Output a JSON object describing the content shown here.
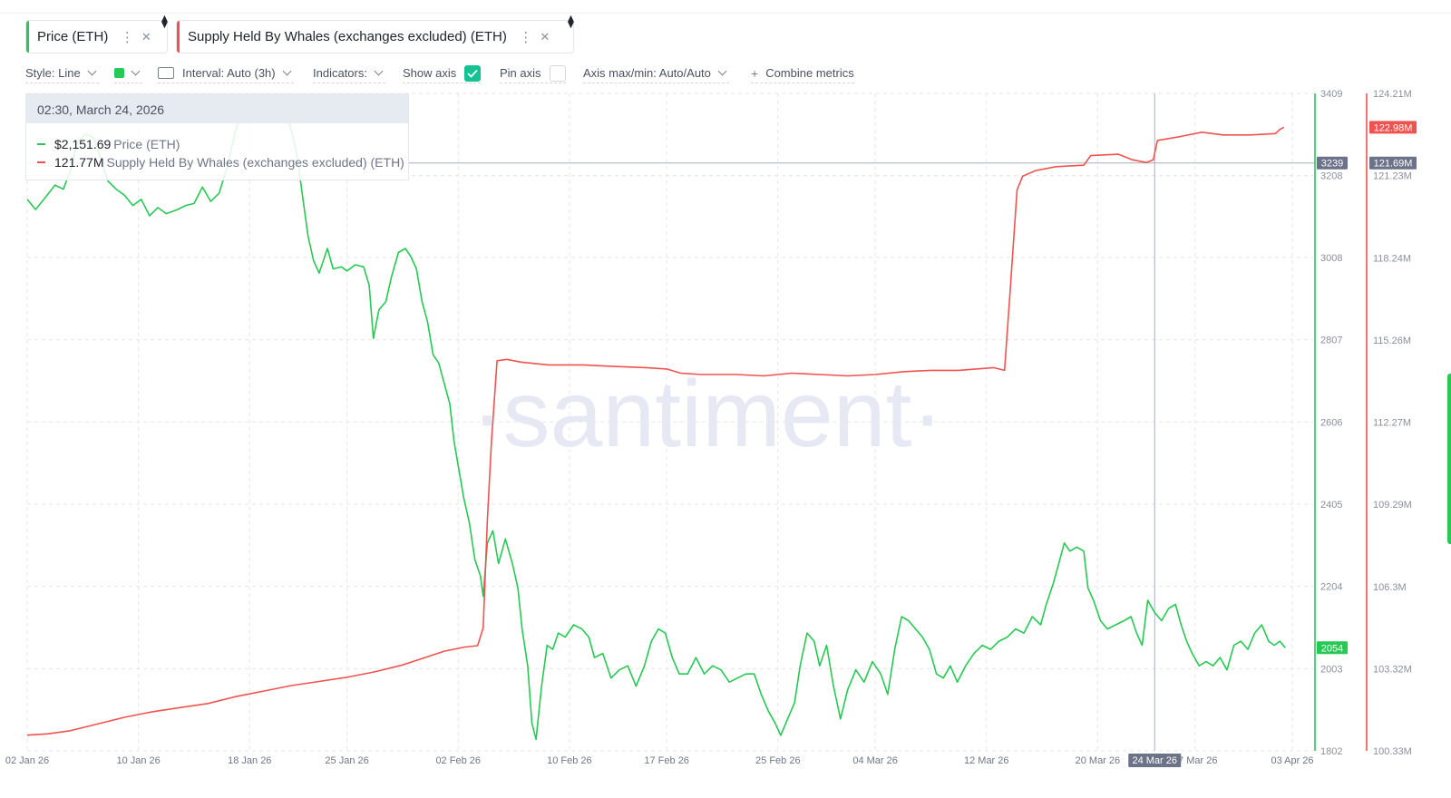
{
  "metrics": [
    {
      "label": "Price (ETH)",
      "color": "#26c953"
    },
    {
      "label": "Supply Held By Whales (exchanges excluded) (ETH)",
      "color": "#ef5350"
    }
  ],
  "icons": {
    "menu": "kebab-icon",
    "close": "close-icon",
    "eth": "eth-icon"
  },
  "toolbar": {
    "style": "Style: Line",
    "interval": "Interval: Auto (3h)",
    "indicators": "Indicators:",
    "show_axis": "Show axis",
    "pin_axis": "Pin axis",
    "axis_maxmin": "Axis max/min: Auto/Auto",
    "combine": "Combine metrics"
  },
  "tooltip": {
    "date": "02:30, March 24, 2026",
    "price_value": "$2,151.69",
    "price_name": "Price (ETH)",
    "whales_value": "121.77M",
    "whales_name": "Supply Held By Whales (exchanges excluded) (ETH)"
  },
  "watermark": "·santiment·",
  "chart_data": {
    "type": "line",
    "x_ticks": [
      "02 Jan 26",
      "10 Jan 26",
      "18 Jan 26",
      "25 Jan 26",
      "02 Feb 26",
      "10 Feb 26",
      "17 Feb 26",
      "25 Feb 26",
      "04 Mar 26",
      "12 Mar 26",
      "20 Mar 26",
      "24 Mar 26",
      "27 Mar 26",
      "03 Apr 26"
    ],
    "x_tick_days": [
      0,
      8,
      16,
      23,
      31,
      39,
      46,
      54,
      61,
      69,
      77,
      81,
      84,
      91
    ],
    "highlight_x": "24 Mar 26",
    "highlight_day": 81.1,
    "x_range_days": [
      0,
      92.5
    ],
    "left_axis": {
      "ticks": [
        3409,
        3208,
        3008,
        2807,
        2606,
        2405,
        2204,
        2003,
        1802
      ],
      "range": [
        1802,
        3409
      ],
      "current": 2054,
      "crosshair": 3239,
      "color": "#26c953"
    },
    "right_axis": {
      "ticks": [
        "124.21M",
        "121.23M",
        "118.24M",
        "115.26M",
        "112.27M",
        "109.29M",
        "106.3M",
        "103.32M",
        "100.33M"
      ],
      "range": [
        100.33,
        124.21
      ],
      "current": "122.98M",
      "crosshair": "121.69M",
      "color": "#ef5350"
    },
    "series": [
      {
        "name": "Price (ETH)",
        "axis": "left",
        "color": "#26c953",
        "points": [
          [
            0,
            3150
          ],
          [
            0.6,
            3125
          ],
          [
            1.2,
            3150
          ],
          [
            2.0,
            3185
          ],
          [
            2.6,
            3175
          ],
          [
            3.2,
            3230
          ],
          [
            3.6,
            3290
          ],
          [
            4.2,
            3310
          ],
          [
            4.8,
            3300
          ],
          [
            5.3,
            3250
          ],
          [
            5.8,
            3195
          ],
          [
            6.4,
            3175
          ],
          [
            7.0,
            3160
          ],
          [
            7.6,
            3135
          ],
          [
            8.2,
            3150
          ],
          [
            8.8,
            3110
          ],
          [
            9.4,
            3130
          ],
          [
            10.0,
            3115
          ],
          [
            10.8,
            3125
          ],
          [
            11.4,
            3135
          ],
          [
            12.0,
            3140
          ],
          [
            12.6,
            3180
          ],
          [
            13.2,
            3145
          ],
          [
            13.8,
            3165
          ],
          [
            14.4,
            3230
          ],
          [
            15.0,
            3320
          ],
          [
            15.6,
            3370
          ],
          [
            16.2,
            3340
          ],
          [
            16.8,
            3360
          ],
          [
            17.4,
            3350
          ],
          [
            18.0,
            3365
          ],
          [
            18.6,
            3360
          ],
          [
            19.0,
            3320
          ],
          [
            19.4,
            3260
          ],
          [
            19.8,
            3160
          ],
          [
            20.2,
            3060
          ],
          [
            20.6,
            3000
          ],
          [
            21.0,
            2970
          ],
          [
            21.6,
            3030
          ],
          [
            22.0,
            2980
          ],
          [
            22.6,
            2985
          ],
          [
            23.0,
            2975
          ],
          [
            23.6,
            2990
          ],
          [
            24.2,
            2985
          ],
          [
            24.6,
            2940
          ],
          [
            24.9,
            2810
          ],
          [
            25.3,
            2880
          ],
          [
            25.8,
            2900
          ],
          [
            26.2,
            2960
          ],
          [
            26.7,
            3020
          ],
          [
            27.2,
            3030
          ],
          [
            27.6,
            3010
          ],
          [
            28.0,
            2980
          ],
          [
            28.4,
            2900
          ],
          [
            28.8,
            2850
          ],
          [
            29.2,
            2770
          ],
          [
            29.6,
            2750
          ],
          [
            30.0,
            2700
          ],
          [
            30.4,
            2650
          ],
          [
            30.7,
            2560
          ],
          [
            31.0,
            2500
          ],
          [
            31.4,
            2420
          ],
          [
            31.8,
            2360
          ],
          [
            32.2,
            2270
          ],
          [
            32.6,
            2230
          ],
          [
            32.8,
            2180
          ],
          [
            33.1,
            2310
          ],
          [
            33.5,
            2340
          ],
          [
            33.9,
            2260
          ],
          [
            34.4,
            2320
          ],
          [
            34.9,
            2260
          ],
          [
            35.3,
            2200
          ],
          [
            35.6,
            2100
          ],
          [
            36.0,
            2010
          ],
          [
            36.3,
            1870
          ],
          [
            36.6,
            1830
          ],
          [
            37.0,
            1960
          ],
          [
            37.4,
            2060
          ],
          [
            37.8,
            2050
          ],
          [
            38.2,
            2090
          ],
          [
            38.7,
            2080
          ],
          [
            39.3,
            2110
          ],
          [
            39.9,
            2100
          ],
          [
            40.4,
            2080
          ],
          [
            40.8,
            2030
          ],
          [
            41.4,
            2040
          ],
          [
            42.0,
            1980
          ],
          [
            42.6,
            2000
          ],
          [
            43.2,
            2010
          ],
          [
            43.8,
            1960
          ],
          [
            44.4,
            2010
          ],
          [
            44.9,
            2070
          ],
          [
            45.4,
            2100
          ],
          [
            45.9,
            2090
          ],
          [
            46.4,
            2030
          ],
          [
            46.9,
            1990
          ],
          [
            47.5,
            1990
          ],
          [
            48.1,
            2030
          ],
          [
            48.7,
            1990
          ],
          [
            49.3,
            2010
          ],
          [
            49.9,
            2000
          ],
          [
            50.5,
            1970
          ],
          [
            51.1,
            1980
          ],
          [
            51.7,
            1990
          ],
          [
            52.3,
            1990
          ],
          [
            52.8,
            1940
          ],
          [
            53.3,
            1900
          ],
          [
            53.8,
            1870
          ],
          [
            54.2,
            1840
          ],
          [
            54.7,
            1880
          ],
          [
            55.2,
            1920
          ],
          [
            55.6,
            2010
          ],
          [
            56.1,
            2090
          ],
          [
            56.6,
            2070
          ],
          [
            57.0,
            2010
          ],
          [
            57.5,
            2060
          ],
          [
            58.0,
            1960
          ],
          [
            58.5,
            1880
          ],
          [
            59.0,
            1950
          ],
          [
            59.6,
            2000
          ],
          [
            60.2,
            1970
          ],
          [
            60.8,
            2020
          ],
          [
            61.4,
            1990
          ],
          [
            61.9,
            1940
          ],
          [
            62.4,
            2050
          ],
          [
            62.9,
            2130
          ],
          [
            63.4,
            2120
          ],
          [
            63.9,
            2100
          ],
          [
            64.4,
            2080
          ],
          [
            64.9,
            2050
          ],
          [
            65.4,
            1990
          ],
          [
            65.9,
            1980
          ],
          [
            66.4,
            2010
          ],
          [
            66.9,
            1970
          ],
          [
            67.5,
            2010
          ],
          [
            68.1,
            2040
          ],
          [
            68.7,
            2060
          ],
          [
            69.3,
            2050
          ],
          [
            69.9,
            2070
          ],
          [
            70.5,
            2080
          ],
          [
            71.1,
            2100
          ],
          [
            71.7,
            2090
          ],
          [
            72.3,
            2130
          ],
          [
            72.9,
            2110
          ],
          [
            73.3,
            2160
          ],
          [
            73.8,
            2210
          ],
          [
            74.2,
            2260
          ],
          [
            74.6,
            2310
          ],
          [
            75.0,
            2290
          ],
          [
            75.5,
            2300
          ],
          [
            76.0,
            2290
          ],
          [
            76.3,
            2200
          ],
          [
            76.7,
            2170
          ],
          [
            77.2,
            2120
          ],
          [
            77.7,
            2100
          ],
          [
            78.3,
            2110
          ],
          [
            78.9,
            2120
          ],
          [
            79.4,
            2130
          ],
          [
            79.8,
            2090
          ],
          [
            80.2,
            2060
          ],
          [
            80.6,
            2170
          ],
          [
            81.1,
            2140
          ],
          [
            81.6,
            2120
          ],
          [
            82.1,
            2150
          ],
          [
            82.6,
            2160
          ],
          [
            83.0,
            2110
          ],
          [
            83.4,
            2070
          ],
          [
            83.8,
            2040
          ],
          [
            84.3,
            2010
          ],
          [
            84.8,
            2020
          ],
          [
            85.3,
            2010
          ],
          [
            85.8,
            2030
          ],
          [
            86.3,
            2000
          ],
          [
            86.8,
            2060
          ],
          [
            87.3,
            2070
          ],
          [
            87.8,
            2050
          ],
          [
            88.3,
            2090
          ],
          [
            88.8,
            2110
          ],
          [
            89.3,
            2070
          ],
          [
            89.7,
            2060
          ],
          [
            90.1,
            2070
          ],
          [
            90.5,
            2054
          ]
        ]
      },
      {
        "name": "Supply Held By Whales (exchanges excluded) (ETH)",
        "axis": "right",
        "color": "#ef5350",
        "points": [
          [
            0,
            100.9
          ],
          [
            1.5,
            100.95
          ],
          [
            3,
            101.05
          ],
          [
            5,
            101.3
          ],
          [
            7,
            101.55
          ],
          [
            9,
            101.75
          ],
          [
            11,
            101.9
          ],
          [
            13,
            102.05
          ],
          [
            15,
            102.3
          ],
          [
            17,
            102.5
          ],
          [
            19,
            102.7
          ],
          [
            21,
            102.85
          ],
          [
            23,
            103.0
          ],
          [
            25,
            103.2
          ],
          [
            27,
            103.45
          ],
          [
            28.5,
            103.7
          ],
          [
            30,
            103.95
          ],
          [
            31.5,
            104.1
          ],
          [
            32.4,
            104.15
          ],
          [
            32.8,
            104.8
          ],
          [
            33.1,
            108.7
          ],
          [
            33.4,
            111.6
          ],
          [
            33.8,
            114.5
          ],
          [
            34.5,
            114.55
          ],
          [
            35.5,
            114.45
          ],
          [
            37.5,
            114.35
          ],
          [
            40,
            114.35
          ],
          [
            42,
            114.3
          ],
          [
            44.5,
            114.25
          ],
          [
            46,
            114.2
          ],
          [
            47,
            114.05
          ],
          [
            48.5,
            114.0
          ],
          [
            51,
            114.0
          ],
          [
            53,
            113.95
          ],
          [
            55,
            114.05
          ],
          [
            57,
            114.0
          ],
          [
            59,
            113.95
          ],
          [
            61,
            114.0
          ],
          [
            63,
            114.1
          ],
          [
            65,
            114.15
          ],
          [
            67,
            114.15
          ],
          [
            69.5,
            114.25
          ],
          [
            70.3,
            114.15
          ],
          [
            70.7,
            117.0
          ],
          [
            71.2,
            120.7
          ],
          [
            71.6,
            121.2
          ],
          [
            72.5,
            121.4
          ],
          [
            74,
            121.55
          ],
          [
            76,
            121.6
          ],
          [
            76.5,
            121.95
          ],
          [
            78.5,
            122.0
          ],
          [
            79.5,
            121.8
          ],
          [
            80.5,
            121.7
          ],
          [
            81.0,
            121.8
          ],
          [
            81.3,
            122.5
          ],
          [
            83,
            122.65
          ],
          [
            84.5,
            122.8
          ],
          [
            86,
            122.7
          ],
          [
            88,
            122.7
          ],
          [
            89.8,
            122.75
          ],
          [
            90.1,
            122.9
          ],
          [
            90.4,
            122.98
          ]
        ]
      }
    ]
  }
}
